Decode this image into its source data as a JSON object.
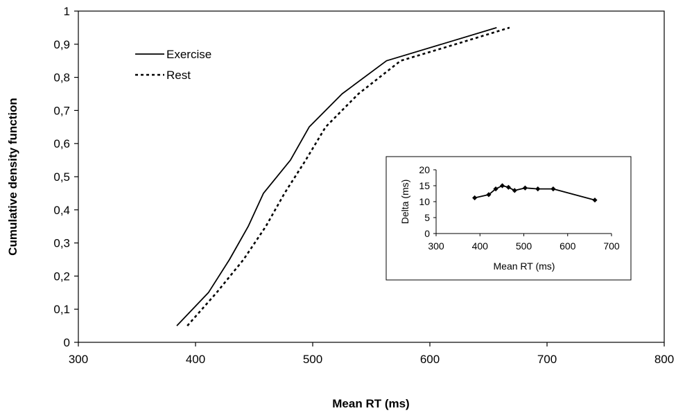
{
  "chart_data": [
    {
      "type": "line",
      "title": "",
      "xlabel": "Mean RT (ms)",
      "ylabel": "Cumulative density function",
      "xlim": [
        300,
        800
      ],
      "ylim": [
        0,
        1
      ],
      "x_ticks": [
        "300",
        "400",
        "500",
        "600",
        "700",
        "800"
      ],
      "y_ticks": [
        "0",
        "0,1",
        "0,2",
        "0,3",
        "0,4",
        "0,5",
        "0,6",
        "0,7",
        "0,8",
        "0,9",
        "1"
      ],
      "legend_position": "top-left",
      "grid": false,
      "series": [
        {
          "name": "Exercise",
          "style": "solid",
          "color": "#000000",
          "x": [
            384,
            411,
            429,
            445,
            458,
            481,
            497,
            525,
            563,
            610,
            657
          ],
          "y": [
            0.05,
            0.15,
            0.25,
            0.35,
            0.45,
            0.55,
            0.65,
            0.75,
            0.85,
            0.9,
            0.95
          ]
        },
        {
          "name": "Rest",
          "style": "dashed",
          "color": "#000000",
          "x": [
            393,
            418,
            441,
            460,
            476,
            494,
            511,
            539,
            575,
            622,
            668
          ],
          "y": [
            0.05,
            0.15,
            0.25,
            0.35,
            0.45,
            0.55,
            0.65,
            0.75,
            0.85,
            0.9,
            0.95
          ]
        }
      ]
    },
    {
      "type": "line",
      "title": "",
      "xlabel": "Mean RT (ms)",
      "ylabel": "Delta (ms)",
      "xlim": [
        300,
        700
      ],
      "ylim": [
        0,
        20
      ],
      "x_ticks": [
        "300",
        "400",
        "500",
        "600",
        "700"
      ],
      "y_ticks": [
        "0",
        "5",
        "10",
        "15",
        "20"
      ],
      "grid": false,
      "series": [
        {
          "name": "",
          "color": "#000000",
          "marker": "diamond",
          "x": [
            388,
            420,
            436,
            451,
            465,
            479,
            503,
            532,
            567,
            662
          ],
          "y": [
            11.2,
            12.2,
            14.0,
            15.0,
            14.5,
            13.5,
            14.3,
            14.0,
            14.0,
            10.5
          ]
        }
      ]
    }
  ]
}
